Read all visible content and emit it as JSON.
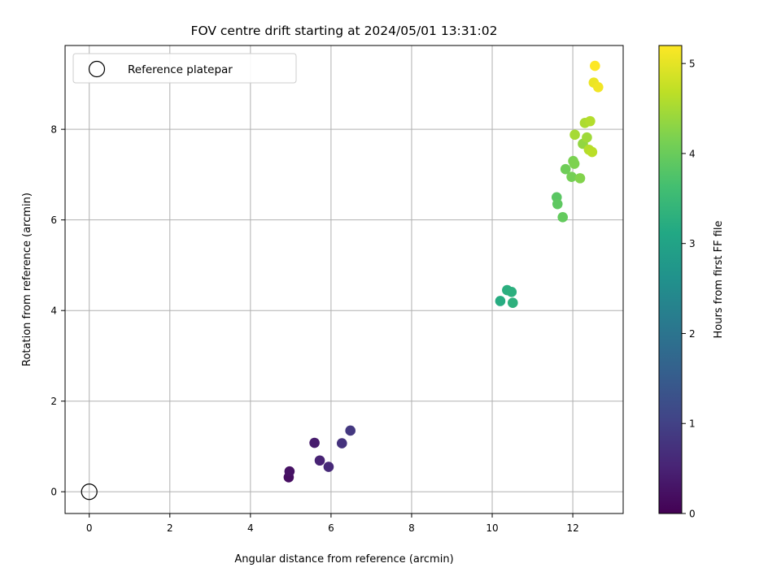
{
  "chart_data": {
    "type": "scatter",
    "title": "FOV centre drift starting at 2024/05/01 13:31:02",
    "xlabel": "Angular distance from reference (arcmin)",
    "ylabel": "Rotation from reference (arcmin)",
    "xlim": [
      -0.6,
      13.25
    ],
    "ylim": [
      -0.48,
      9.85
    ],
    "xticks": [
      0,
      2,
      4,
      6,
      8,
      10,
      12
    ],
    "yticks": [
      0,
      2,
      4,
      6,
      8
    ],
    "grid": true,
    "legend": {
      "placement": "top-left",
      "entries": [
        "Reference platepar"
      ]
    },
    "reference_point": {
      "x": 0,
      "y": 0,
      "label": "Reference platepar"
    },
    "colorbar": {
      "label": "Hours from first FF file",
      "colormap": "viridis",
      "range": [
        0,
        5.2
      ],
      "ticks": [
        0,
        1,
        2,
        3,
        4,
        5
      ]
    },
    "points": [
      {
        "x": 4.95,
        "y": 0.32,
        "t": 0.2
      },
      {
        "x": 4.97,
        "y": 0.45,
        "t": 0.25
      },
      {
        "x": 5.59,
        "y": 1.08,
        "t": 0.4
      },
      {
        "x": 5.72,
        "y": 0.69,
        "t": 0.5
      },
      {
        "x": 5.94,
        "y": 0.55,
        "t": 0.6
      },
      {
        "x": 6.27,
        "y": 1.07,
        "t": 0.75
      },
      {
        "x": 6.48,
        "y": 1.35,
        "t": 0.85
      },
      {
        "x": 10.2,
        "y": 4.21,
        "t": 3.2
      },
      {
        "x": 10.37,
        "y": 4.45,
        "t": 3.25
      },
      {
        "x": 10.48,
        "y": 4.41,
        "t": 3.28
      },
      {
        "x": 10.51,
        "y": 4.17,
        "t": 3.3
      },
      {
        "x": 11.6,
        "y": 6.5,
        "t": 3.85
      },
      {
        "x": 11.62,
        "y": 6.35,
        "t": 3.9
      },
      {
        "x": 11.75,
        "y": 6.06,
        "t": 3.95
      },
      {
        "x": 11.82,
        "y": 7.12,
        "t": 4.05
      },
      {
        "x": 11.97,
        "y": 6.95,
        "t": 4.1
      },
      {
        "x": 12.01,
        "y": 7.3,
        "t": 4.15
      },
      {
        "x": 12.04,
        "y": 7.24,
        "t": 4.18
      },
      {
        "x": 12.18,
        "y": 6.92,
        "t": 4.22
      },
      {
        "x": 12.25,
        "y": 7.68,
        "t": 4.35
      },
      {
        "x": 12.35,
        "y": 7.82,
        "t": 4.45
      },
      {
        "x": 12.05,
        "y": 7.88,
        "t": 4.5
      },
      {
        "x": 12.3,
        "y": 8.14,
        "t": 4.55
      },
      {
        "x": 12.43,
        "y": 8.18,
        "t": 4.6
      },
      {
        "x": 12.4,
        "y": 7.55,
        "t": 4.62
      },
      {
        "x": 12.48,
        "y": 7.5,
        "t": 4.65
      },
      {
        "x": 12.52,
        "y": 9.03,
        "t": 5.05
      },
      {
        "x": 12.63,
        "y": 8.93,
        "t": 5.1
      },
      {
        "x": 12.55,
        "y": 9.4,
        "t": 5.2
      }
    ]
  }
}
